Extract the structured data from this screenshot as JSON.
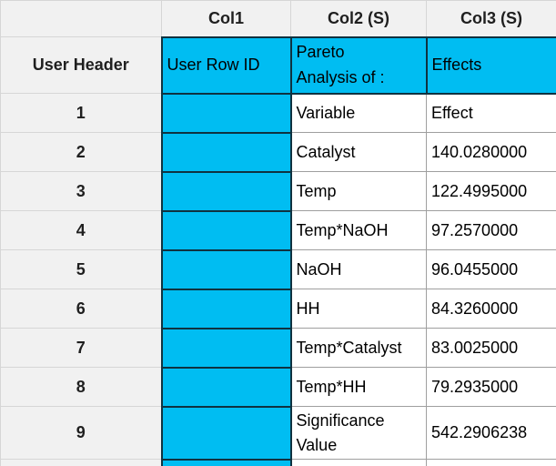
{
  "table": {
    "column_headers": [
      "",
      "Col1",
      "Col2 (S)",
      "Col3 (S)"
    ],
    "user_header": {
      "label": "User Header",
      "col1": "User Row ID",
      "col2": "Pareto\nAnalysis of :",
      "col3": "Effects"
    },
    "rows": [
      {
        "num": "1",
        "col1": "",
        "col2": "Variable",
        "col3": "Effect"
      },
      {
        "num": "2",
        "col1": "",
        "col2": "Catalyst",
        "col3": "140.0280000"
      },
      {
        "num": "3",
        "col1": "",
        "col2": "Temp",
        "col3": "122.4995000"
      },
      {
        "num": "4",
        "col1": "",
        "col2": "Temp*NaOH",
        "col3": "97.2570000"
      },
      {
        "num": "5",
        "col1": "",
        "col2": "NaOH",
        "col3": "96.0455000"
      },
      {
        "num": "6",
        "col1": "",
        "col2": "HH",
        "col3": "84.3260000"
      },
      {
        "num": "7",
        "col1": "",
        "col2": "Temp*Catalyst",
        "col3": "83.0025000"
      },
      {
        "num": "8",
        "col1": "",
        "col2": "Temp*HH",
        "col3": "79.2935000"
      },
      {
        "num": "9",
        "col1": "",
        "col2": "Significance\nValue",
        "col3": "542.2906238"
      }
    ],
    "colors": {
      "highlight_fill": "#00bdf2",
      "highlight_border": "#0f3240",
      "header_bg": "#f1f1f1",
      "header_border": "#d6d6d6",
      "cell_border": "#9f9f9f"
    }
  }
}
